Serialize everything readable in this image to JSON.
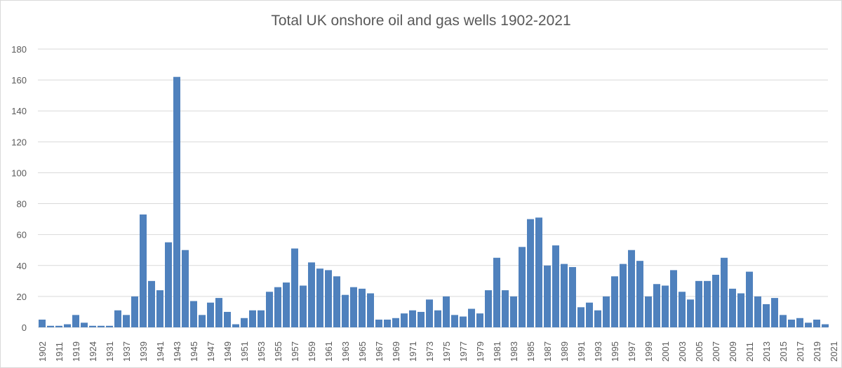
{
  "chart_data": {
    "type": "bar",
    "title": "Total UK onshore oil and gas wells 1902-2021",
    "xlabel": "",
    "ylabel": "",
    "ylim": [
      0,
      180
    ],
    "yticks": [
      0,
      20,
      40,
      60,
      80,
      100,
      120,
      140,
      160,
      180
    ],
    "grid": true,
    "legend": "none",
    "bar_color": "#4f81bd",
    "categories": [
      "1902",
      "",
      "1911",
      "",
      "1919",
      "",
      "1924",
      "",
      "1931",
      "",
      "1937",
      "1938",
      "1939",
      "1940",
      "1941",
      "1942",
      "1943",
      "1944",
      "1945",
      "1946",
      "1947",
      "1948",
      "1949",
      "1950",
      "1951",
      "1952",
      "1953",
      "1954",
      "1955",
      "1956",
      "1957",
      "1958",
      "1959",
      "1960",
      "1961",
      "1962",
      "1963",
      "1964",
      "1965",
      "1966",
      "1967",
      "1968",
      "1969",
      "1970",
      "1971",
      "1972",
      "1973",
      "1974",
      "1975",
      "1976",
      "1977",
      "1978",
      "1979",
      "1980",
      "1981",
      "1982",
      "1983",
      "1984",
      "1985",
      "1986",
      "1987",
      "1988",
      "1989",
      "1990",
      "1991",
      "1992",
      "1993",
      "1994",
      "1995",
      "1996",
      "1997",
      "1998",
      "1999",
      "2000",
      "2001",
      "2002",
      "2003",
      "2004",
      "2005",
      "2006",
      "2007",
      "2008",
      "2009",
      "2010",
      "2011",
      "2012",
      "2013",
      "2014",
      "2015",
      "2016",
      "2017",
      "2018",
      "2019",
      "2020",
      "2021"
    ],
    "tick_labels": [
      "1902",
      "1911",
      "1919",
      "1924",
      "1931",
      "1937",
      "1939",
      "1941",
      "1943",
      "1945",
      "1947",
      "1949",
      "1951",
      "1953",
      "1955",
      "1957",
      "1959",
      "1961",
      "1963",
      "1965",
      "1967",
      "1969",
      "1971",
      "1973",
      "1975",
      "1977",
      "1979",
      "1981",
      "1983",
      "1985",
      "1987",
      "1989",
      "1991",
      "1993",
      "1995",
      "1997",
      "1999",
      "2001",
      "2003",
      "2005",
      "2007",
      "2009",
      "2011",
      "2013",
      "2015",
      "2017",
      "2019",
      "2021"
    ],
    "values": [
      5,
      1,
      1,
      2,
      8,
      3,
      1,
      1,
      1,
      11,
      8,
      20,
      73,
      30,
      24,
      55,
      162,
      50,
      17,
      8,
      16,
      19,
      10,
      2,
      6,
      11,
      11,
      23,
      26,
      29,
      51,
      27,
      42,
      38,
      37,
      33,
      21,
      26,
      25,
      22,
      5,
      5,
      6,
      9,
      11,
      10,
      18,
      11,
      20,
      8,
      7,
      12,
      9,
      24,
      45,
      24,
      20,
      52,
      70,
      71,
      40,
      53,
      41,
      39,
      13,
      16,
      11,
      20,
      33,
      41,
      50,
      43,
      20,
      28,
      27,
      37,
      23,
      18,
      30,
      30,
      34,
      45,
      25,
      22,
      36,
      20,
      15,
      19,
      8,
      5,
      6,
      3,
      5,
      2,
      0
    ]
  }
}
